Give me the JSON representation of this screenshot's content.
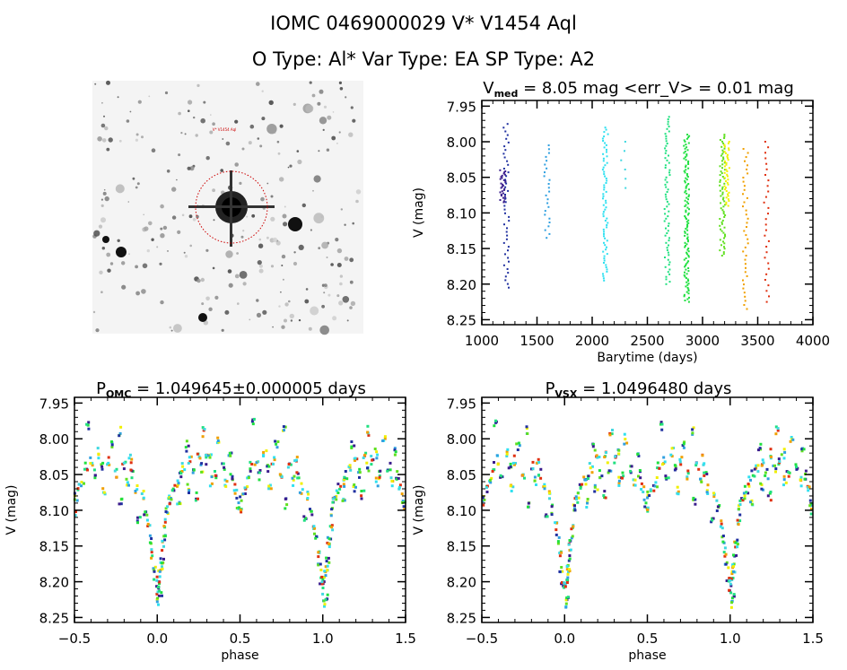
{
  "header": {
    "title": "IOMC 0469000029    V* V1454 Aql",
    "subtitle": "O Type: Al*   Var Type: EA   SP Type: A2"
  },
  "finder_image": {
    "target_label": "V* V1454 Aql",
    "circle_color": "#cc0000"
  },
  "palette": [
    "#3a1c8c",
    "#2030a0",
    "#30a0e0",
    "#30e0f0",
    "#40d8e0",
    "#20e080",
    "#20e040",
    "#60e020",
    "#f0f000",
    "#f0a000",
    "#e03010"
  ],
  "chart_data": [
    {
      "type": "scatter",
      "title_main": "V",
      "title_sub": "med",
      "title_rest": " = 8.05 mag <err_V> = 0.01 mag",
      "xlabel": "Barytime (days)",
      "ylabel": "V (mag)",
      "xlim": [
        1000,
        4000
      ],
      "ylim": [
        7.942,
        8.257
      ],
      "y_inverted": true,
      "xticks": [
        1000,
        1500,
        2000,
        2500,
        3000,
        3500,
        4000
      ],
      "xtick_labels": [
        "1000",
        "1500",
        "2000",
        "2500",
        "3000",
        "3500",
        "4000"
      ],
      "yticks": [
        7.95,
        8.0,
        8.05,
        8.1,
        8.15,
        8.2,
        8.25
      ],
      "ytick_labels": [
        "7.95",
        "8.00",
        "8.05",
        "8.10",
        "8.15",
        "8.20",
        "8.25"
      ],
      "x_minor": 100,
      "y_minor": 0.01,
      "clusters": [
        {
          "t": 1190,
          "vmin": 8.04,
          "vmax": 8.085,
          "n": 30,
          "color": "#3a1c8c"
        },
        {
          "t": 1222,
          "vmin": 7.975,
          "vmax": 8.205,
          "n": 45,
          "color": "#2030a0"
        },
        {
          "t": 1590,
          "vmin": 8.005,
          "vmax": 8.135,
          "n": 25,
          "color": "#30a0e0"
        },
        {
          "t": 2120,
          "vmin": 7.98,
          "vmax": 8.195,
          "n": 70,
          "color": "#30e0f0"
        },
        {
          "t": 2280,
          "vmin": 8.0,
          "vmax": 8.065,
          "n": 6,
          "color": "#40d8e0"
        },
        {
          "t": 2680,
          "vmin": 7.965,
          "vmax": 8.2,
          "n": 70,
          "color": "#20e080"
        },
        {
          "t": 2855,
          "vmin": 7.99,
          "vmax": 8.225,
          "n": 120,
          "color": "#20e040"
        },
        {
          "t": 3180,
          "vmin": 7.99,
          "vmax": 8.16,
          "n": 70,
          "color": "#60e020"
        },
        {
          "t": 3220,
          "vmin": 8.0,
          "vmax": 8.09,
          "n": 40,
          "color": "#f0f000"
        },
        {
          "t": 3390,
          "vmin": 8.01,
          "vmax": 8.235,
          "n": 40,
          "color": "#f0a000"
        },
        {
          "t": 3580,
          "vmin": 8.0,
          "vmax": 8.225,
          "n": 30,
          "color": "#e03010"
        }
      ]
    },
    {
      "type": "scatter",
      "title_main": "P",
      "title_sub": "OMC",
      "title_rest": " = 1.049645±0.000005 days",
      "xlabel": "phase",
      "ylabel": "V (mag)",
      "xlim": [
        -0.5,
        1.5
      ],
      "ylim": [
        7.942,
        8.257
      ],
      "y_inverted": true,
      "xticks": [
        -0.5,
        0.0,
        0.5,
        1.0,
        1.5
      ],
      "xtick_labels": [
        "−0.5",
        "0.0",
        "0.5",
        "1.0",
        "1.5"
      ],
      "yticks": [
        7.95,
        8.0,
        8.05,
        8.1,
        8.15,
        8.2,
        8.25
      ],
      "ytick_labels": [
        "7.95",
        "8.00",
        "8.05",
        "8.10",
        "8.15",
        "8.20",
        "8.25"
      ],
      "x_minor": 0.1,
      "y_minor": 0.01,
      "points": [
        [
          0.0,
          8.21
        ],
        [
          0.005,
          8.23
        ],
        [
          0.01,
          8.2
        ],
        [
          0.015,
          8.19
        ],
        [
          0.02,
          8.22
        ],
        [
          0.025,
          8.18
        ],
        [
          0.03,
          8.17
        ],
        [
          0.035,
          8.15
        ],
        [
          0.04,
          8.14
        ],
        [
          0.05,
          8.12
        ],
        [
          0.06,
          8.1
        ],
        [
          0.07,
          8.09
        ],
        [
          0.08,
          8.08
        ],
        [
          0.1,
          8.07
        ],
        [
          0.12,
          8.06
        ],
        [
          0.14,
          8.05
        ],
        [
          0.16,
          8.04
        ],
        [
          0.18,
          8.01
        ],
        [
          0.2,
          8.03
        ],
        [
          0.22,
          8.05
        ],
        [
          0.25,
          8.02
        ],
        [
          0.27,
          8.04
        ],
        [
          0.3,
          8.03
        ],
        [
          0.32,
          8.02
        ],
        [
          0.35,
          8.05
        ],
        [
          0.37,
          8.0
        ],
        [
          0.4,
          8.04
        ],
        [
          0.42,
          8.06
        ],
        [
          0.45,
          8.05
        ],
        [
          0.47,
          8.07
        ],
        [
          0.49,
          8.09
        ],
        [
          0.5,
          8.1
        ],
        [
          0.51,
          8.08
        ],
        [
          0.53,
          8.07
        ],
        [
          0.55,
          8.06
        ],
        [
          0.57,
          8.04
        ],
        [
          0.6,
          8.03
        ],
        [
          0.62,
          8.05
        ],
        [
          0.65,
          8.02
        ],
        [
          0.67,
          8.04
        ],
        [
          0.7,
          8.03
        ],
        [
          0.72,
          8.01
        ],
        [
          0.75,
          8.05
        ],
        [
          0.77,
          7.99
        ],
        [
          0.8,
          8.04
        ],
        [
          0.82,
          8.06
        ],
        [
          0.85,
          8.05
        ],
        [
          0.87,
          8.07
        ],
        [
          0.89,
          8.11
        ],
        [
          0.91,
          8.08
        ],
        [
          0.93,
          8.1
        ],
        [
          0.95,
          8.12
        ],
        [
          0.96,
          8.14
        ],
        [
          0.97,
          8.16
        ],
        [
          0.98,
          8.18
        ],
        [
          0.99,
          8.2
        ],
        [
          0.13,
          8.09
        ],
        [
          0.24,
          8.08
        ],
        [
          0.33,
          8.06
        ],
        [
          0.58,
          7.98
        ],
        [
          0.68,
          8.07
        ],
        [
          0.78,
          8.09
        ],
        [
          0.84,
          8.03
        ],
        [
          0.44,
          8.02
        ],
        [
          0.28,
          7.99
        ],
        [
          0.19,
          8.07
        ]
      ]
    },
    {
      "type": "scatter",
      "title_main": "P",
      "title_sub": "VSX",
      "title_rest": " = 1.0496480 days",
      "xlabel": "phase",
      "ylabel": "V (mag)",
      "xlim": [
        -0.5,
        1.5
      ],
      "ylim": [
        7.942,
        8.257
      ],
      "y_inverted": true,
      "xticks": [
        -0.5,
        0.0,
        0.5,
        1.0,
        1.5
      ],
      "xtick_labels": [
        "−0.5",
        "0.0",
        "0.5",
        "1.0",
        "1.5"
      ],
      "yticks": [
        7.95,
        8.0,
        8.05,
        8.1,
        8.15,
        8.2,
        8.25
      ],
      "ytick_labels": [
        "7.95",
        "8.00",
        "8.05",
        "8.10",
        "8.15",
        "8.20",
        "8.25"
      ],
      "x_minor": 0.1,
      "y_minor": 0.01,
      "points": [
        [
          0.0,
          8.21
        ],
        [
          0.005,
          8.23
        ],
        [
          0.01,
          8.2
        ],
        [
          0.015,
          8.19
        ],
        [
          0.02,
          8.22
        ],
        [
          0.025,
          8.18
        ],
        [
          0.03,
          8.17
        ],
        [
          0.035,
          8.15
        ],
        [
          0.04,
          8.14
        ],
        [
          0.05,
          8.12
        ],
        [
          0.06,
          8.1
        ],
        [
          0.07,
          8.09
        ],
        [
          0.08,
          8.08
        ],
        [
          0.1,
          8.07
        ],
        [
          0.12,
          8.06
        ],
        [
          0.14,
          8.05
        ],
        [
          0.16,
          8.04
        ],
        [
          0.18,
          8.01
        ],
        [
          0.2,
          8.03
        ],
        [
          0.22,
          8.05
        ],
        [
          0.25,
          8.02
        ],
        [
          0.27,
          8.04
        ],
        [
          0.3,
          8.03
        ],
        [
          0.32,
          8.02
        ],
        [
          0.35,
          8.05
        ],
        [
          0.37,
          8.0
        ],
        [
          0.4,
          8.04
        ],
        [
          0.42,
          8.06
        ],
        [
          0.45,
          8.05
        ],
        [
          0.47,
          8.07
        ],
        [
          0.49,
          8.09
        ],
        [
          0.5,
          8.1
        ],
        [
          0.51,
          8.08
        ],
        [
          0.53,
          8.07
        ],
        [
          0.55,
          8.06
        ],
        [
          0.57,
          8.04
        ],
        [
          0.6,
          8.03
        ],
        [
          0.62,
          8.05
        ],
        [
          0.65,
          8.02
        ],
        [
          0.67,
          8.04
        ],
        [
          0.7,
          8.03
        ],
        [
          0.72,
          8.01
        ],
        [
          0.75,
          8.05
        ],
        [
          0.77,
          7.99
        ],
        [
          0.8,
          8.04
        ],
        [
          0.82,
          8.06
        ],
        [
          0.85,
          8.05
        ],
        [
          0.87,
          8.07
        ],
        [
          0.89,
          8.11
        ],
        [
          0.91,
          8.08
        ],
        [
          0.93,
          8.1
        ],
        [
          0.95,
          8.12
        ],
        [
          0.96,
          8.14
        ],
        [
          0.97,
          8.16
        ],
        [
          0.98,
          8.18
        ],
        [
          0.99,
          8.2
        ],
        [
          0.13,
          8.09
        ],
        [
          0.24,
          8.08
        ],
        [
          0.33,
          8.06
        ],
        [
          0.58,
          7.98
        ],
        [
          0.68,
          8.07
        ],
        [
          0.78,
          8.09
        ],
        [
          0.84,
          8.03
        ],
        [
          0.44,
          8.02
        ],
        [
          0.28,
          7.99
        ],
        [
          0.19,
          8.07
        ]
      ]
    }
  ]
}
